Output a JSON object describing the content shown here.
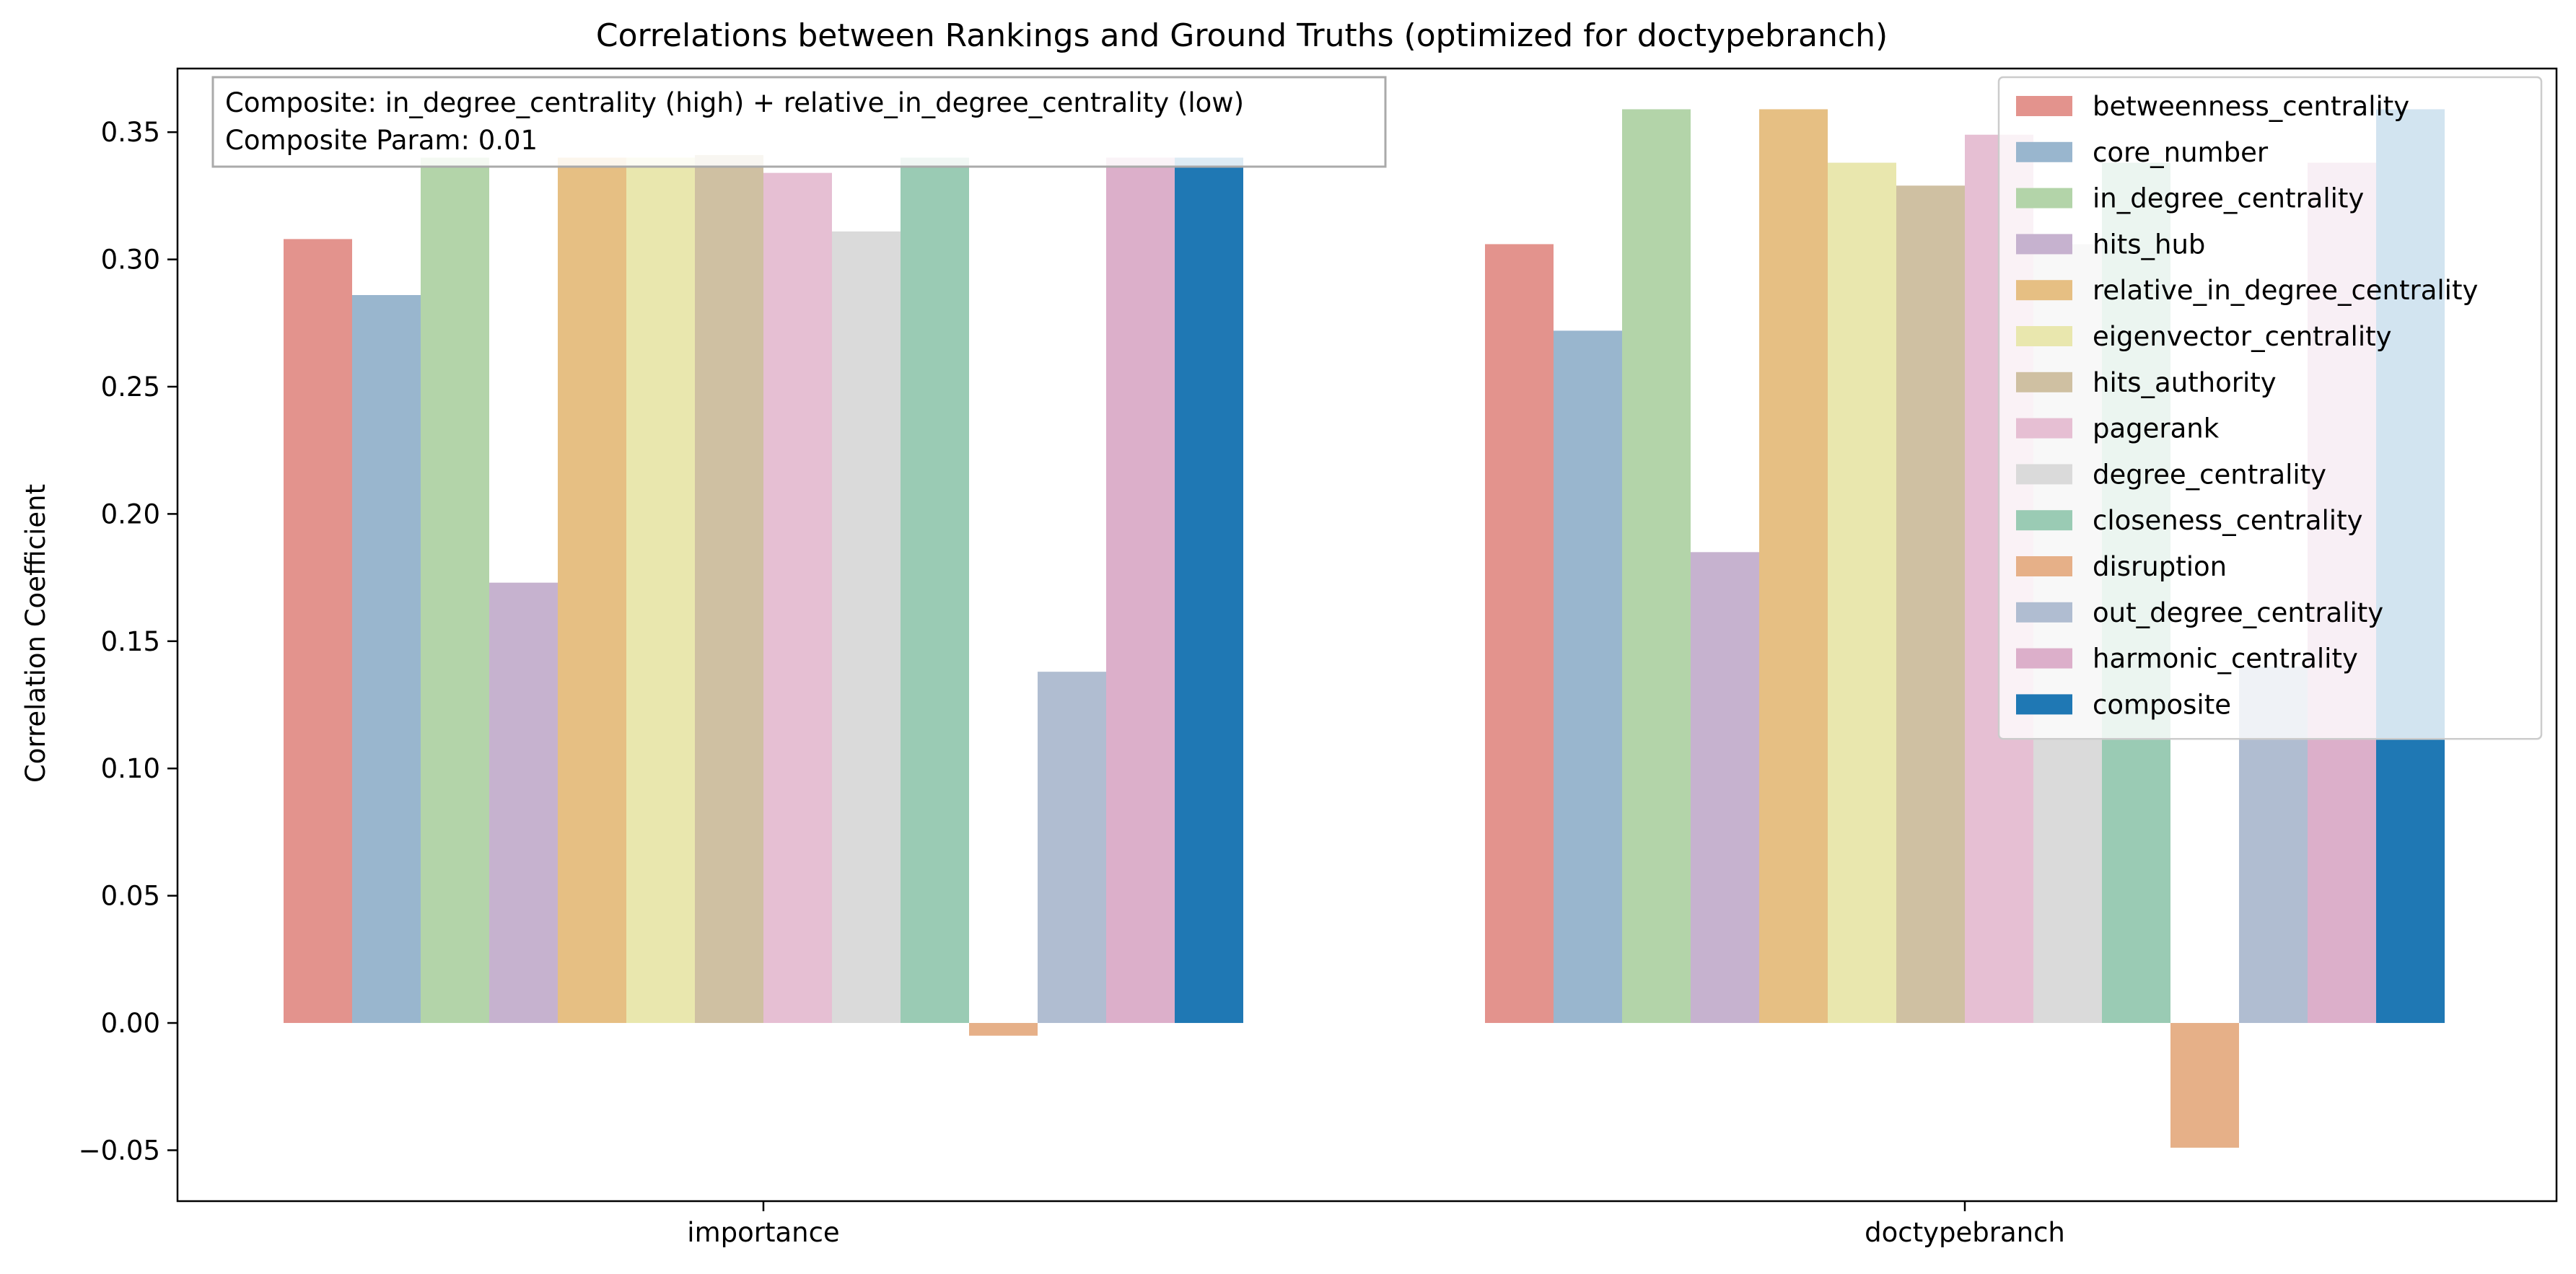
{
  "chart_data": {
    "type": "bar",
    "title": "Correlations between Rankings and Ground Truths (optimized for doctypebranch)",
    "xlabel": "",
    "ylabel": "Correlation Coefficient",
    "categories": [
      "importance",
      "doctypebranch"
    ],
    "ylim": [
      -0.07,
      0.375
    ],
    "yticks": [
      -0.05,
      0.0,
      0.05,
      0.1,
      0.15,
      0.2,
      0.25,
      0.3,
      0.35
    ],
    "ytick_labels": [
      "−0.05",
      "0.00",
      "0.05",
      "0.10",
      "0.15",
      "0.20",
      "0.25",
      "0.30",
      "0.35"
    ],
    "grid": false,
    "legend_position": "top-right",
    "annotation": {
      "lines": [
        "Composite: in_degree_centrality (high) + relative_in_degree_centrality (low)",
        "Composite Param: 0.01"
      ],
      "position": "top-left"
    },
    "series": [
      {
        "name": "betweenness_centrality",
        "color": "#e3938d",
        "values": [
          0.308,
          0.306
        ]
      },
      {
        "name": "core_number",
        "color": "#99b6ce",
        "values": [
          0.286,
          0.272
        ]
      },
      {
        "name": "in_degree_centrality",
        "color": "#b3d4a9",
        "values": [
          0.34,
          0.359
        ]
      },
      {
        "name": "hits_hub",
        "color": "#c6b2cf",
        "values": [
          0.173,
          0.185
        ]
      },
      {
        "name": "relative_in_degree_centrality",
        "color": "#e6bf83",
        "values": [
          0.34,
          0.359
        ]
      },
      {
        "name": "eigenvector_centrality",
        "color": "#e9e7ae",
        "values": [
          0.34,
          0.338
        ]
      },
      {
        "name": "hits_authority",
        "color": "#cfc0a2",
        "values": [
          0.341,
          0.329
        ]
      },
      {
        "name": "pagerank",
        "color": "#e6bfd3",
        "values": [
          0.334,
          0.349
        ]
      },
      {
        "name": "degree_centrality",
        "color": "#dadada",
        "values": [
          0.311,
          0.306
        ]
      },
      {
        "name": "closeness_centrality",
        "color": "#9acbb4",
        "values": [
          0.34,
          0.338
        ]
      },
      {
        "name": "disruption",
        "color": "#e6b088",
        "values": [
          -0.005,
          -0.049
        ]
      },
      {
        "name": "out_degree_centrality",
        "color": "#b0bdd1",
        "values": [
          0.138,
          0.14
        ]
      },
      {
        "name": "harmonic_centrality",
        "color": "#dcafca",
        "values": [
          0.34,
          0.338
        ]
      },
      {
        "name": "composite",
        "color": "#1f78b4",
        "values": [
          0.34,
          0.359
        ]
      }
    ]
  }
}
